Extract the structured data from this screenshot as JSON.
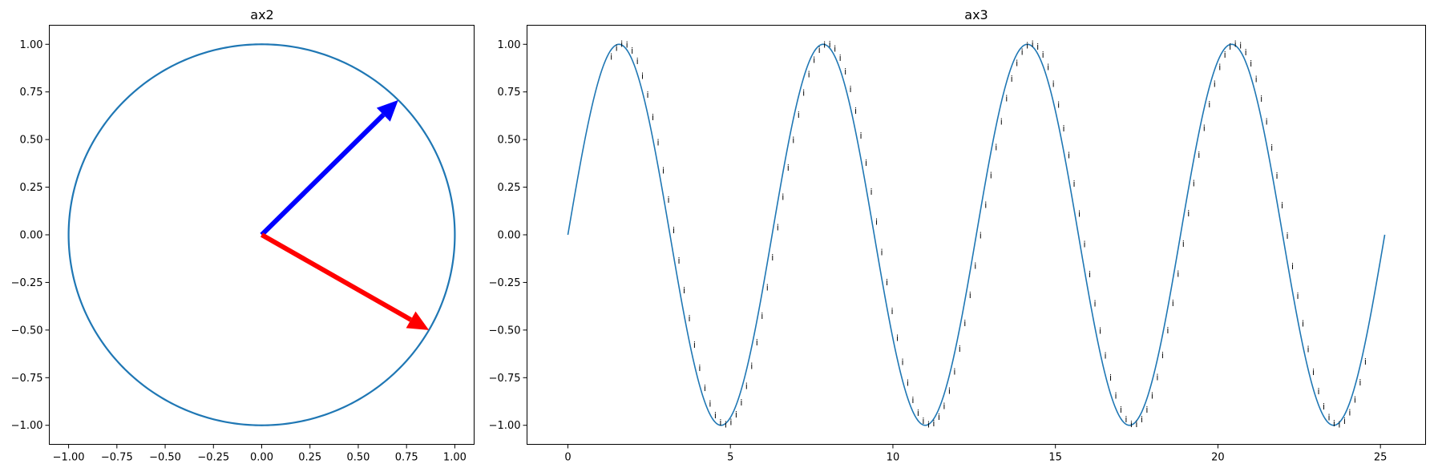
{
  "chart_data": [
    {
      "type": "line",
      "title": "ax2",
      "xlim": [
        -1.1,
        1.1
      ],
      "ylim": [
        -1.1,
        1.1
      ],
      "xticks": [
        -1.0,
        -0.75,
        -0.5,
        -0.25,
        0.0,
        0.25,
        0.5,
        0.75,
        1.0
      ],
      "xticklabels": [
        "−1.00",
        "−0.75",
        "−0.50",
        "−0.25",
        "0.00",
        "0.25",
        "0.50",
        "0.75",
        "1.00"
      ],
      "yticks": [
        -1.0,
        -0.75,
        -0.5,
        -0.25,
        0.0,
        0.25,
        0.5,
        0.75,
        1.0
      ],
      "yticklabels": [
        "−1.00",
        "−0.75",
        "−0.50",
        "−0.25",
        "0.00",
        "0.25",
        "0.50",
        "0.75",
        "1.00"
      ],
      "grid": false,
      "series": [
        {
          "kind": "circle",
          "cx": 0,
          "cy": 0,
          "r": 1,
          "color": "#1f77b4"
        }
      ],
      "arrows": [
        {
          "x0": 0,
          "y0": 0,
          "x1": 0.707,
          "y1": 0.707,
          "color": "#0000ff"
        },
        {
          "x0": 0,
          "y0": 0,
          "x1": 0.866,
          "y1": -0.5,
          "color": "#ff0000"
        }
      ]
    },
    {
      "type": "line",
      "title": "ax3",
      "xlim": [
        -1.257,
        26.389
      ],
      "ylim": [
        -1.1,
        1.1
      ],
      "xticks": [
        0,
        5,
        10,
        15,
        20,
        25
      ],
      "xticklabels": [
        "0",
        "5",
        "10",
        "15",
        "20",
        "25"
      ],
      "yticks": [
        -1.0,
        -0.75,
        -0.5,
        -0.25,
        0.0,
        0.25,
        0.5,
        0.75,
        1.0
      ],
      "yticklabels": [
        "−1.00",
        "−0.75",
        "−0.50",
        "−0.25",
        "0.00",
        "0.25",
        "0.50",
        "0.75",
        "1.00"
      ],
      "grid": false,
      "series": [
        {
          "kind": "function",
          "fn": "sin",
          "x_range": [
            0,
            25.133
          ],
          "color": "#1f77b4"
        }
      ],
      "point_markers": {
        "text": "i",
        "x_range": [
          1.2,
          24.4
        ],
        "step": 0.16,
        "color": "#000000"
      }
    }
  ]
}
